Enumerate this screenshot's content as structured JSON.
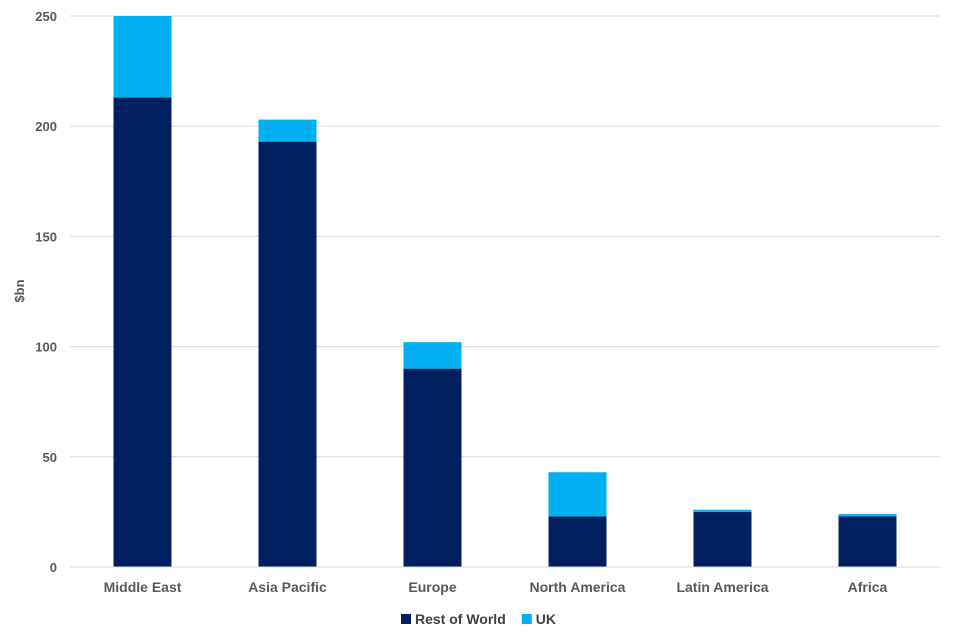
{
  "chart_data": {
    "type": "bar",
    "stacked": true,
    "title": "",
    "xlabel": "",
    "ylabel": "$bn",
    "ylim": [
      0,
      250
    ],
    "yticks": [
      0,
      50,
      100,
      150,
      200,
      250
    ],
    "grid": true,
    "legend_position": "bottom-center",
    "categories": [
      "Middle East",
      "Asia Pacific",
      "Europe",
      "North America",
      "Latin America",
      "Africa"
    ],
    "series": [
      {
        "name": "Rest of World",
        "color": "#002060",
        "values": [
          213,
          193,
          90,
          23,
          25,
          23
        ]
      },
      {
        "name": "UK",
        "color": "#00B0F0",
        "values": [
          37,
          10,
          12,
          20,
          1,
          1
        ]
      }
    ]
  }
}
